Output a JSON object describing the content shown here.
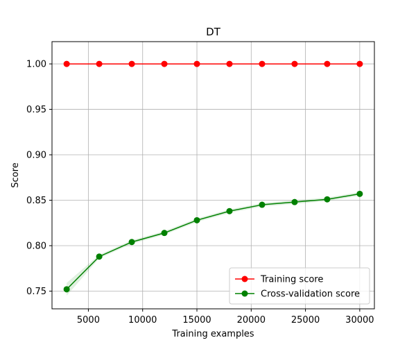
{
  "chart_data": {
    "type": "line",
    "title": "DT",
    "xlabel": "Training examples",
    "ylabel": "Score",
    "xlim": [
      1650,
      31350
    ],
    "ylim": [
      0.7305,
      1.0245
    ],
    "grid": true,
    "legend_position": "lower-right",
    "xticks": [
      5000,
      10000,
      15000,
      20000,
      25000,
      30000
    ],
    "yticks": [
      0.75,
      0.8,
      0.85,
      0.9,
      0.95,
      1.0
    ],
    "xtick_labels": [
      "5000",
      "10000",
      "15000",
      "20000",
      "25000",
      "30000"
    ],
    "ytick_labels": [
      "0.75",
      "0.80",
      "0.85",
      "0.90",
      "0.95",
      "1.00"
    ],
    "x": [
      3000,
      6000,
      9000,
      12000,
      15000,
      18000,
      21000,
      24000,
      27000,
      30000
    ],
    "series": [
      {
        "name": "Training score",
        "color": "#ff0000",
        "values": [
          1.0,
          1.0,
          1.0,
          1.0,
          1.0,
          1.0,
          1.0,
          1.0,
          1.0,
          1.0
        ],
        "band": [
          0,
          0,
          0,
          0,
          0,
          0,
          0,
          0,
          0,
          0
        ]
      },
      {
        "name": "Cross-validation score",
        "color": "#008000",
        "values": [
          0.752,
          0.788,
          0.804,
          0.814,
          0.828,
          0.838,
          0.845,
          0.848,
          0.851,
          0.857
        ],
        "band": [
          0.007,
          0.002,
          0.002,
          0.002,
          0.002,
          0.002,
          0.002,
          0.002,
          0.002,
          0.002
        ]
      }
    ]
  }
}
